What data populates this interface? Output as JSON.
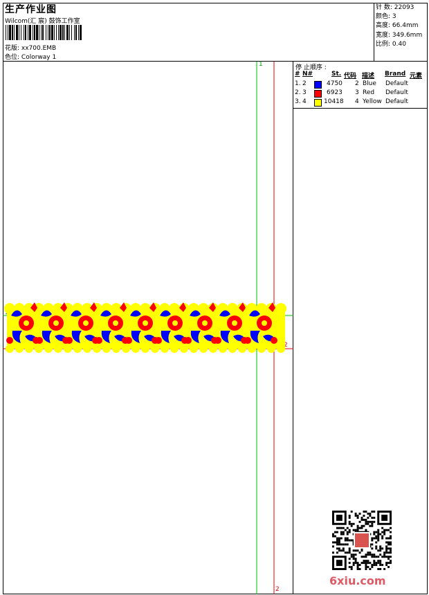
{
  "header": {
    "title": "生产作业图",
    "company": "Wilcom(汇 宸) 鼓饰工作室",
    "design_label": "花版: ",
    "design_value": "xx700.EMB",
    "colorway_label": "色位: ",
    "colorway_value": "Colorway 1"
  },
  "specs": [
    {
      "label": "针 数: ",
      "value": "22093"
    },
    {
      "label": "颜色: ",
      "value": "3"
    },
    {
      "label": "高度: ",
      "value": "66.4mm"
    },
    {
      "label": "宽度: ",
      "value": "349.6mm"
    },
    {
      "label": "比例: ",
      "value": "0.40"
    }
  ],
  "stop_sequence": {
    "title": "停 止顺序 :",
    "headers": {
      "num": "#",
      "n": "N#",
      "st": "St.",
      "code": "代码",
      "desc": "描述",
      "brand": "Brand",
      "element": "元素"
    },
    "rows": [
      {
        "num": "1.",
        "n": "2",
        "color": "#0000ff",
        "st": "4750",
        "code": "2",
        "desc": "Blue",
        "brand": "Default"
      },
      {
        "num": "2.",
        "n": "3",
        "color": "#ff0000",
        "st": "6923",
        "code": "3",
        "desc": "Red",
        "brand": "Default"
      },
      {
        "num": "3.",
        "n": "4",
        "color": "#ffff00",
        "st": "10418",
        "code": "4",
        "desc": "Yellow",
        "brand": "Default"
      }
    ]
  },
  "guides": {
    "top_green": "1",
    "left_green": "1",
    "right_red": "2",
    "bottom_red": "2"
  },
  "colors": {
    "guide_green": "#00c000",
    "guide_red": "#e00000",
    "thread_yellow": "#ffff00",
    "thread_red": "#ff0000",
    "thread_blue": "#0000ff",
    "watermark": "#e05a66"
  },
  "watermark": {
    "site": "6xiu.com"
  }
}
